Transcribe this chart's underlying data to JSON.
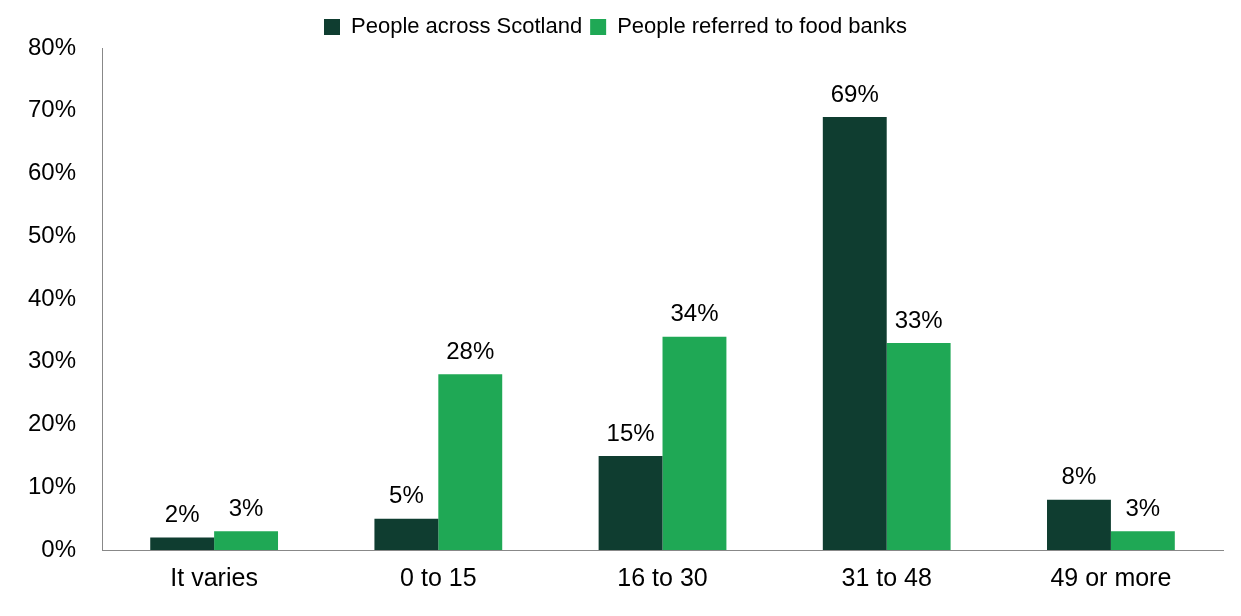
{
  "chart_data": {
    "type": "bar",
    "categories": [
      "It varies",
      "0 to 15",
      "16 to 30",
      "31 to 48",
      "49 or more"
    ],
    "series": [
      {
        "name": "People across Scotland",
        "color": "#0f3d30",
        "values": [
          2,
          5,
          15,
          69,
          8
        ],
        "value_labels": [
          "2%",
          "5%",
          "15%",
          "69%",
          "8%"
        ]
      },
      {
        "name": "People referred to food banks",
        "color": "#1fa855",
        "values": [
          3,
          28,
          34,
          33,
          3
        ],
        "value_labels": [
          "3%",
          "28%",
          "34%",
          "33%",
          "3%"
        ]
      }
    ],
    "ylim": [
      0,
      80
    ],
    "yticks": [
      {
        "value": 0,
        "label": "0%"
      },
      {
        "value": 10,
        "label": "10%"
      },
      {
        "value": 20,
        "label": "20%"
      },
      {
        "value": 30,
        "label": "30%"
      },
      {
        "value": 40,
        "label": "40%"
      },
      {
        "value": 50,
        "label": "50%"
      },
      {
        "value": 60,
        "label": "60%"
      },
      {
        "value": 70,
        "label": "70%"
      },
      {
        "value": 80,
        "label": "80%"
      }
    ],
    "grid": false,
    "legend": "top"
  }
}
